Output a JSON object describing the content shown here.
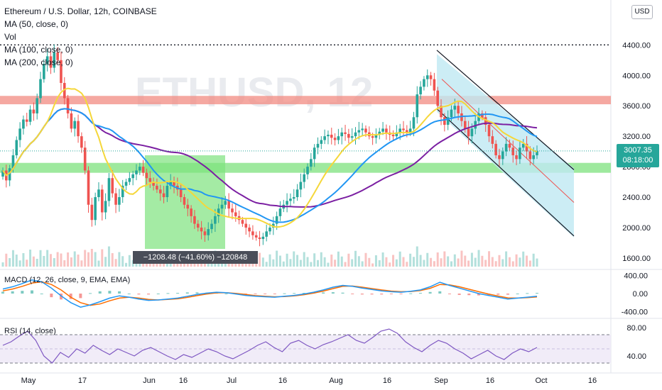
{
  "header": {
    "title": "Ethereum / U.S. Dollar, 12h, COINBASE",
    "indicators": [
      "MA (50, close, 0)",
      "Vol",
      "MA (100, close, 0)",
      "MA (200, close, 0)"
    ],
    "currency_button": "USD",
    "watermark": "ETHUSD, 12"
  },
  "price_badge": {
    "price": "3007.35",
    "countdown": "08:18:00"
  },
  "measure_label": "−1208.48 (−41.60%) −120848",
  "colors": {
    "up": "#26a69a",
    "down": "#ef5350",
    "ma50": "#f5d73a",
    "ma100": "#2196f3",
    "ma200": "#7b1fa2",
    "macd_line": "#2196f3",
    "signal_line": "#ff6d00",
    "rsi_line": "#7e57c2",
    "support_zone": "#7ee27e",
    "resistance_zone": "#f28b82",
    "measure_zone": "#7ee27e",
    "channel_fill": "#bfe8f3"
  },
  "chart_data": [
    {
      "type": "candlestick",
      "title": "Ethereum / U.S. Dollar, 12h, COINBASE",
      "x_ticks": [
        "May",
        "17",
        "Jun",
        "16",
        "Jul",
        "16",
        "Aug",
        "16",
        "Sep",
        "16",
        "Oct",
        "16"
      ],
      "y_ticks": [
        1600,
        2000,
        2400,
        2800,
        3200,
        3600,
        4000,
        4400
      ],
      "ylim": [
        1450,
        4850
      ],
      "last_price": 3007.35,
      "dotted_level": 4400,
      "resistance_zone": [
        3620,
        3730
      ],
      "support_zone": [
        2720,
        2850
      ],
      "close": [
        2750,
        2620,
        2780,
        2950,
        3150,
        3300,
        3420,
        3390,
        3550,
        3500,
        3700,
        3950,
        4150,
        4250,
        4100,
        4300,
        4200,
        3900,
        3700,
        3500,
        3300,
        3400,
        3200,
        3050,
        2750,
        2300,
        2100,
        2400,
        2500,
        2200,
        2350,
        2650,
        2450,
        2300,
        2400,
        2550,
        2600,
        2650,
        2700,
        2750,
        2800,
        2720,
        2650,
        2600,
        2550,
        2500,
        2450,
        2400,
        2550,
        2600,
        2550,
        2500,
        2400,
        2300,
        2250,
        2150,
        2050,
        2000,
        1950,
        1900,
        1980,
        2050,
        2150,
        2250,
        2300,
        2350,
        2250,
        2200,
        2150,
        2100,
        2050,
        2000,
        1950,
        1900,
        1870,
        1850,
        1880,
        1950,
        2000,
        2050,
        2150,
        2250,
        2300,
        2350,
        2380,
        2400,
        2500,
        2600,
        2700,
        2800,
        2900,
        3050,
        3100,
        3150,
        3200,
        3220,
        3180,
        3150,
        3200,
        3250,
        3230,
        3180,
        3200,
        3250,
        3280,
        3300,
        3250,
        3200,
        3180,
        3220,
        3260,
        3300,
        3250,
        3220,
        3200,
        3250,
        3300,
        3280,
        3250,
        3300,
        3450,
        3750,
        3850,
        3950,
        4000,
        3950,
        3800,
        3600,
        3450,
        3350,
        3450,
        3550,
        3600,
        3500,
        3400,
        3300,
        3200,
        3300,
        3400,
        3500,
        3450,
        3350,
        3200,
        3100,
        2950,
        2900,
        3000,
        3100,
        3050,
        2950,
        2900,
        3050,
        3100,
        3000,
        2900,
        2950,
        3007
      ],
      "volume_note": "volume histogram at bottom of price pane"
    },
    {
      "type": "line",
      "title": "MACD (12, 26, close, 9, EMA, EMA)",
      "y_ticks": [
        -400,
        0,
        400
      ],
      "ylim": [
        -500,
        500
      ],
      "series": [
        {
          "name": "MACD",
          "values": [
            100,
            150,
            220,
            300,
            260,
            120,
            -50,
            -200,
            -300,
            -250,
            -180,
            -100,
            -50,
            -80,
            -120,
            -150,
            -140,
            -120,
            -100,
            -60,
            -20,
            10,
            30,
            20,
            -10,
            -40,
            -60,
            -70,
            -80,
            -60,
            -40,
            -10,
            30,
            80,
            140,
            180,
            160,
            120,
            90,
            60,
            40,
            30,
            50,
            80,
            150,
            250,
            180,
            120,
            60,
            0,
            -40,
            -80,
            -120,
            -100,
            -80,
            -60
          ]
        },
        {
          "name": "Signal",
          "values": [
            60,
            100,
            160,
            230,
            260,
            200,
            80,
            -80,
            -200,
            -260,
            -230,
            -160,
            -100,
            -80,
            -100,
            -130,
            -140,
            -130,
            -115,
            -85,
            -45,
            -10,
            15,
            20,
            5,
            -20,
            -45,
            -60,
            -70,
            -65,
            -50,
            -25,
            10,
            55,
            110,
            160,
            165,
            140,
            110,
            80,
            55,
            40,
            45,
            65,
            115,
            200,
            190,
            150,
            95,
            40,
            -10,
            -55,
            -95,
            -100,
            -90,
            -75
          ]
        }
      ]
    },
    {
      "type": "line",
      "title": "RSI (14, close)",
      "y_ticks": [
        40,
        80
      ],
      "ylim": [
        20,
        90
      ],
      "series": [
        {
          "name": "RSI",
          "values": [
            55,
            60,
            68,
            75,
            62,
            40,
            30,
            45,
            38,
            50,
            44,
            55,
            48,
            42,
            50,
            45,
            40,
            48,
            52,
            46,
            40,
            35,
            42,
            38,
            44,
            50,
            46,
            40,
            36,
            42,
            48,
            55,
            60,
            52,
            46,
            58,
            62,
            55,
            50,
            56,
            60,
            65,
            70,
            62,
            58,
            66,
            75,
            78,
            72,
            60,
            52,
            46,
            55,
            62,
            58,
            50,
            44,
            36,
            42,
            48,
            40,
            35,
            44,
            50,
            46,
            52
          ]
        }
      ]
    }
  ]
}
